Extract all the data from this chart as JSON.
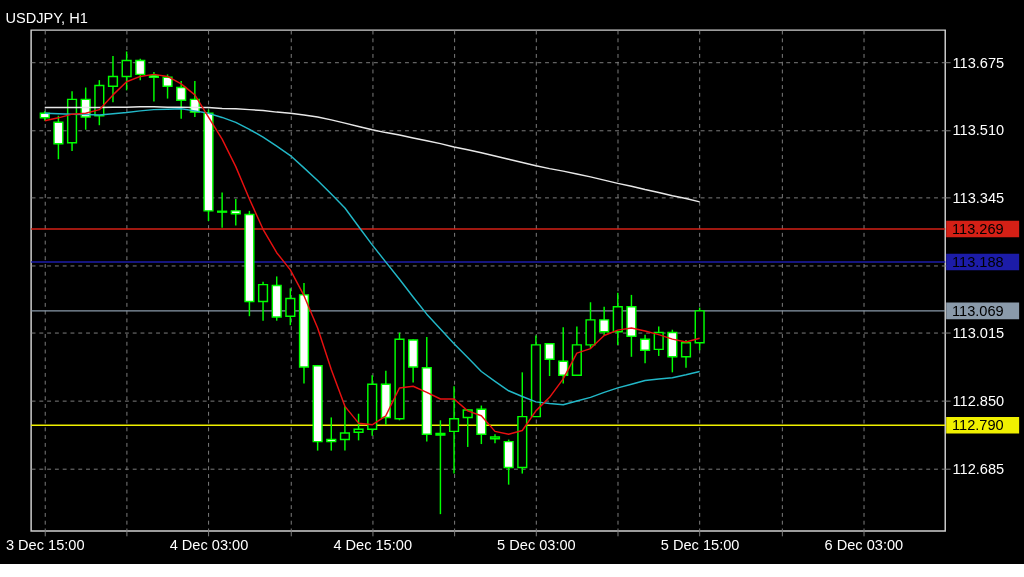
{
  "chart_data": {
    "type": "candlestick",
    "title": "USDJPY, H1",
    "categories": [
      "3 Dec 15:00",
      null,
      null,
      null,
      null,
      null,
      null,
      null,
      null,
      null,
      null,
      null,
      "4 Dec 03:00",
      null,
      null,
      null,
      null,
      null,
      null,
      null,
      null,
      null,
      null,
      null,
      "4 Dec 15:00",
      null,
      null,
      null,
      null,
      null,
      null,
      null,
      null,
      null,
      null,
      null,
      "5 Dec 03:00",
      null,
      null,
      null,
      null,
      null,
      null,
      null,
      null,
      null,
      null,
      null,
      "5 Dec 15:00",
      null,
      null,
      null,
      null,
      null,
      null,
      null,
      null,
      null,
      null,
      null,
      "6 Dec 03:00",
      null,
      null,
      null,
      null,
      null
    ],
    "ohlc": [
      [
        113.551,
        113.556,
        113.533,
        113.54
      ],
      [
        113.529,
        113.545,
        113.439,
        113.477
      ],
      [
        113.479,
        113.605,
        113.459,
        113.585
      ],
      [
        113.585,
        113.614,
        113.511,
        113.542
      ],
      [
        113.545,
        113.632,
        113.522,
        113.619
      ],
      [
        113.617,
        113.691,
        113.578,
        113.641
      ],
      [
        113.641,
        113.702,
        113.607,
        113.68
      ],
      [
        113.68,
        113.684,
        113.632,
        113.646
      ],
      [
        113.643,
        113.652,
        113.58,
        113.639
      ],
      [
        113.639,
        113.646,
        113.587,
        113.617
      ],
      [
        113.614,
        113.63,
        113.538,
        113.583
      ],
      [
        113.585,
        113.63,
        113.542,
        113.554
      ],
      [
        113.551,
        113.56,
        113.288,
        113.313
      ],
      [
        113.312,
        113.358,
        113.272,
        113.31
      ],
      [
        113.313,
        113.342,
        113.277,
        113.306
      ],
      [
        113.304,
        113.313,
        113.056,
        113.092
      ],
      [
        113.092,
        113.14,
        113.045,
        113.133
      ],
      [
        113.131,
        113.153,
        113.045,
        113.054
      ],
      [
        113.056,
        113.124,
        113.034,
        113.099
      ],
      [
        113.108,
        113.137,
        112.892,
        112.932
      ],
      [
        112.935,
        112.937,
        112.728,
        112.75
      ],
      [
        112.755,
        112.809,
        112.728,
        112.75
      ],
      [
        112.755,
        112.836,
        112.728,
        112.771
      ],
      [
        112.773,
        112.818,
        112.753,
        112.78
      ],
      [
        112.78,
        112.912,
        112.764,
        112.89
      ],
      [
        112.89,
        112.923,
        112.791,
        112.809
      ],
      [
        112.806,
        113.016,
        112.802,
        113.0
      ],
      [
        112.998,
        113.0,
        112.894,
        112.932
      ],
      [
        112.93,
        113.005,
        112.75,
        112.768
      ],
      [
        112.77,
        112.802,
        112.573,
        112.766
      ],
      [
        112.775,
        112.885,
        112.672,
        112.806
      ],
      [
        112.809,
        112.829,
        112.737,
        112.827
      ],
      [
        112.829,
        112.838,
        112.744,
        112.768
      ],
      [
        112.757,
        112.768,
        112.746,
        112.761
      ],
      [
        112.75,
        112.755,
        112.645,
        112.687
      ],
      [
        112.687,
        112.919,
        112.672,
        112.811
      ],
      [
        112.811,
        113.009,
        112.811,
        112.986
      ],
      [
        112.989,
        112.989,
        112.91,
        112.951
      ],
      [
        112.946,
        113.029,
        112.892,
        112.912
      ],
      [
        112.912,
        113.031,
        112.912,
        112.986
      ],
      [
        112.986,
        113.09,
        112.977,
        113.047
      ],
      [
        113.047,
        113.079,
        113.009,
        113.018
      ],
      [
        113.018,
        113.113,
        112.986,
        113.079
      ],
      [
        113.079,
        113.108,
        112.957,
        113.007
      ],
      [
        113.0,
        113.011,
        112.941,
        112.973
      ],
      [
        112.975,
        113.031,
        112.959,
        113.016
      ],
      [
        113.016,
        113.023,
        112.919,
        112.957
      ],
      [
        112.957,
        112.998,
        112.93,
        112.991
      ],
      [
        112.991,
        113.077,
        112.973,
        113.069
      ],
      null,
      null,
      null,
      null,
      null,
      null,
      null,
      null,
      null,
      null,
      null,
      null,
      null,
      null,
      null,
      null,
      null
    ],
    "color": "#00ff00",
    "colors": [
      "#ffffff",
      "#ffffff",
      "#000000",
      "#ffffff",
      "#000000",
      "#000000",
      "#000000",
      "#ffffff",
      "#ffffff",
      "#ffffff",
      "#ffffff",
      "#ffffff",
      "#ffffff",
      "#ffffff",
      "#ffffff",
      "#ffffff",
      "#000000",
      "#ffffff",
      "#000000",
      "#ffffff",
      "#ffffff",
      "#ffffff",
      "#000000",
      "#000000",
      "#000000",
      "#ffffff",
      "#000000",
      "#ffffff",
      "#ffffff",
      "#ffffff",
      "#000000",
      "#000000",
      "#ffffff",
      "#000000",
      "#ffffff",
      "#000000",
      "#000000",
      "#ffffff",
      "#ffffff",
      "#000000",
      "#000000",
      "#ffffff",
      "#000000",
      "#ffffff",
      "#ffffff",
      "#000000",
      "#ffffff",
      "#000000",
      "#000000",
      null,
      null,
      null,
      null,
      null,
      null,
      null,
      null,
      null,
      null,
      null,
      null,
      null,
      null,
      null,
      null,
      null
    ],
    "series": [
      {
        "type": "line",
        "color": "#e8e8e8",
        "values": [
          113.565,
          113.565,
          113.565,
          113.565,
          113.565,
          113.566,
          113.566,
          113.567,
          113.567,
          113.566,
          113.566,
          113.565,
          113.565,
          113.563,
          113.562,
          113.56,
          113.558,
          113.554,
          113.551,
          113.547,
          113.542,
          113.535,
          113.527,
          113.519,
          113.511,
          113.504,
          113.498,
          113.491,
          113.484,
          113.477,
          113.469,
          113.462,
          113.455,
          113.447,
          113.439,
          113.431,
          113.423,
          113.416,
          113.41,
          113.403,
          113.396,
          113.388,
          113.38,
          113.373,
          113.365,
          113.358,
          113.35,
          113.343,
          113.335,
          null,
          null,
          null,
          null,
          null,
          null,
          null,
          null,
          null,
          null,
          null,
          null,
          null,
          null,
          null,
          null,
          null
        ]
      },
      {
        "type": "line",
        "color": "#22b8c8",
        "values": [
          113.551,
          113.55,
          113.549,
          113.548,
          113.547,
          113.55,
          113.553,
          113.557,
          113.56,
          113.561,
          113.562,
          113.557,
          113.551,
          113.541,
          113.529,
          113.512,
          113.493,
          113.471,
          113.448,
          113.418,
          113.387,
          113.354,
          113.32,
          113.275,
          113.23,
          113.188,
          113.146,
          113.103,
          113.061,
          113.025,
          112.989,
          112.955,
          112.921,
          112.897,
          112.874,
          112.86,
          112.847,
          112.843,
          112.84,
          112.849,
          112.858,
          112.87,
          112.881,
          112.89,
          112.899,
          112.903,
          112.906,
          112.913,
          112.921,
          null,
          null,
          null,
          null,
          null,
          null,
          null,
          null,
          null,
          null,
          null,
          null,
          null,
          null,
          null,
          null,
          null
        ]
      },
      {
        "type": "line",
        "color": "#e81010",
        "values": [
          113.533,
          113.54,
          113.549,
          113.551,
          113.56,
          113.596,
          113.628,
          113.641,
          113.646,
          113.641,
          113.623,
          113.596,
          113.542,
          113.488,
          113.421,
          113.342,
          113.268,
          113.211,
          113.169,
          113.106,
          113.027,
          112.926,
          112.836,
          112.795,
          112.791,
          112.813,
          112.881,
          112.885,
          112.87,
          112.854,
          112.854,
          112.825,
          112.813,
          112.775,
          112.768,
          112.777,
          112.825,
          112.858,
          112.903,
          112.966,
          112.977,
          113.009,
          113.022,
          113.027,
          113.02,
          113.011,
          113.0,
          112.993,
          113.002,
          null,
          null,
          null,
          null,
          null,
          null,
          null,
          null,
          null,
          null,
          null,
          null,
          null,
          null,
          null,
          null,
          null
        ]
      }
    ],
    "ref_lines": [
      {
        "axis": "y",
        "value": 113.269,
        "label": "113.269",
        "color": "#d42016"
      },
      {
        "axis": "y",
        "value": 113.188,
        "label": "113.188",
        "color": "#1c1ca8"
      },
      {
        "axis": "y",
        "value": 113.069,
        "label": "113.069",
        "color": "#8a9aaa"
      },
      {
        "axis": "y",
        "value": 112.79,
        "label": "112.790",
        "color": "#f0f000"
      }
    ],
    "ylim": [
      112.532,
      113.754
    ],
    "yticks": [
      112.685,
      {
        "value": 112.85,
        "label": "112.850"
      },
      113.015,
      {
        "value": 113.18,
        "label": null
      },
      113.345,
      {
        "value": 113.51,
        "label": "113.510"
      },
      113.675
    ],
    "grid": true
  }
}
